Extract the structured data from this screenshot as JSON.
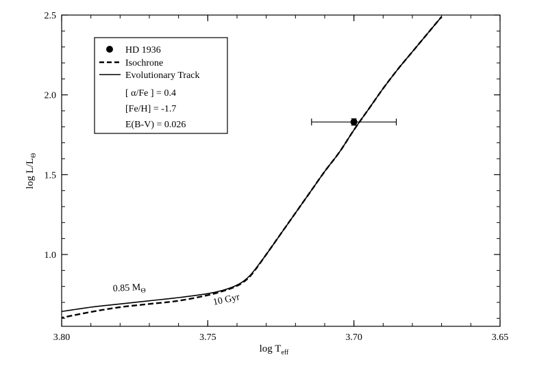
{
  "chart_data": {
    "type": "line",
    "title": "",
    "xlabel_main": "log T",
    "xlabel_sub": "eff",
    "ylabel_main": "log L/L",
    "ylabel_sub": "Θ",
    "xlim": [
      3.8,
      3.65
    ],
    "ylim": [
      0.55,
      2.5
    ],
    "x_ticks": [
      {
        "value": 3.8,
        "label": "3.80"
      },
      {
        "value": 3.75,
        "label": "3.75"
      },
      {
        "value": 3.7,
        "label": "3.70"
      },
      {
        "value": 3.65,
        "label": "3.65"
      }
    ],
    "y_ticks": [
      {
        "value": 1.0,
        "label": "1.0"
      },
      {
        "value": 1.5,
        "label": "1.5"
      },
      {
        "value": 2.0,
        "label": "2.0"
      },
      {
        "value": 2.5,
        "label": "2.5"
      }
    ],
    "series": [
      {
        "name": "Evolutionary Track",
        "style": "solid",
        "color": "#000000",
        "x": [
          3.801,
          3.79,
          3.78,
          3.77,
          3.76,
          3.75,
          3.745,
          3.741,
          3.738,
          3.735,
          3.73,
          3.725,
          3.72,
          3.715,
          3.71,
          3.705,
          3.7,
          3.695,
          3.69,
          3.685,
          3.68,
          3.675,
          3.67
        ],
        "y": [
          0.64,
          0.67,
          0.69,
          0.71,
          0.73,
          0.755,
          0.775,
          0.8,
          0.83,
          0.88,
          1.0,
          1.13,
          1.26,
          1.39,
          1.52,
          1.64,
          1.78,
          1.91,
          2.04,
          2.16,
          2.27,
          2.38,
          2.49
        ]
      },
      {
        "name": "Isochrone",
        "style": "dashed",
        "color": "#000000",
        "x": [
          3.801,
          3.79,
          3.78,
          3.77,
          3.76,
          3.75,
          3.745,
          3.741,
          3.738,
          3.735,
          3.73,
          3.725,
          3.72,
          3.715,
          3.71,
          3.705,
          3.7,
          3.695,
          3.69,
          3.685,
          3.68,
          3.675,
          3.67
        ],
        "y": [
          0.6,
          0.64,
          0.67,
          0.69,
          0.71,
          0.745,
          0.77,
          0.795,
          0.825,
          0.875,
          1.0,
          1.13,
          1.26,
          1.39,
          1.52,
          1.64,
          1.78,
          1.91,
          2.04,
          2.16,
          2.27,
          2.38,
          2.49
        ]
      }
    ],
    "point": {
      "name": "HD 1936",
      "x": 3.7,
      "y": 1.83,
      "xerr": 0.0145,
      "yerr": 0.02
    },
    "legend": {
      "position": "top-left",
      "entries": [
        {
          "label": "HD 1936",
          "marker": "dot"
        },
        {
          "label": "Isochrone",
          "marker": "dashed"
        },
        {
          "label": "Evolutionary Track",
          "marker": "solid"
        }
      ],
      "params": [
        "[ α/Fe ] = 0.4",
        "[Fe/H] = -1.7",
        "E(B-V) = 0.026"
      ]
    },
    "annotations": {
      "mass_main": "0.85 M",
      "mass_sub": "Θ",
      "age": "10 Gyr"
    },
    "grid": false
  }
}
